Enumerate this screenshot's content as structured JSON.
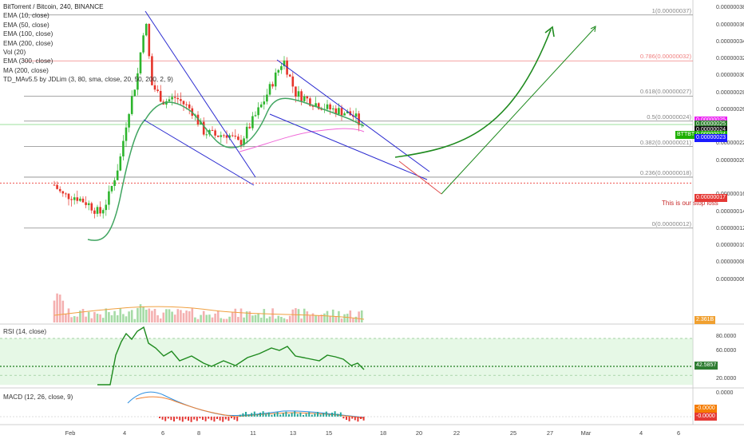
{
  "chart_data": {
    "type": "candlestick",
    "symbol": "BitTorrent / Bitcoin, 240, BINANCE",
    "indicators": [
      "EMA (10, close)",
      "EMA (50, close)",
      "EMA (100, close)",
      "EMA (200, close)",
      "Vol (20)",
      "EMA (300, close)",
      "MA (200, close)",
      "TD_MAv5.5 by JDLim (3, 80, sma, close, 20, 50, 200, 2, 9)"
    ],
    "price_axis_labels": [
      "0.00000038",
      "0.00000036",
      "0.00000034",
      "0.00000032",
      "0.00000030",
      "0.00000028",
      "0.00000026",
      "0.00000022",
      "0.00000020",
      "0.00000016",
      "0.00000014",
      "0.00000012",
      "0.00000010",
      "0.00000008",
      "0.00000006"
    ],
    "fib_levels": [
      {
        "label": "1(0.00000037)",
        "price": 3.72e-07,
        "color": "#888888"
      },
      {
        "label": "0.786(0.00000032)",
        "price": 3.18e-07,
        "color": "#f08080"
      },
      {
        "label": "0.618(0.00000027)",
        "price": 2.765e-07,
        "color": "#888888"
      },
      {
        "label": "0.5(0.00000024)",
        "price": 2.47e-07,
        "color": "#888888"
      },
      {
        "label": "0.382(0.00000021)",
        "price": 2.17e-07,
        "color": "#888888"
      },
      {
        "label": "0.236(0.00000018)",
        "price": 1.81e-07,
        "color": "#888888"
      },
      {
        "label": "0(0.00000012)",
        "price": 1.21e-07,
        "color": "#888888"
      }
    ],
    "stop_loss": {
      "price": 1.74e-07,
      "label": "This is our stop loss",
      "tag": "0.00000017",
      "color": "#e53935"
    },
    "price_tags": [
      {
        "text": "0.00000025",
        "price": 2.48e-07,
        "color": "#e91ef0"
      },
      {
        "text": "0.00000025",
        "price": 2.43e-07,
        "color": "#2a7d2a"
      },
      {
        "text": "0.00000024",
        "price": 2.36e-07,
        "color": "#111111"
      },
      {
        "text": "BTTBTC",
        "price": 2.31e-07,
        "color": "#1db000"
      },
      {
        "text": "0.00000024",
        "price": 2.31e-07,
        "color": "#1db000"
      },
      {
        "text": "0.00000023",
        "price": 2.27e-07,
        "color": "#1a1aff"
      }
    ],
    "volume_tag": "2.361B",
    "rsi": {
      "title": "RSI (14, close)",
      "levels": [
        "80.0000",
        "60.0000",
        "42.5857",
        "20.0000"
      ],
      "value": "42.5857"
    },
    "macd": {
      "title": "MACD (12, 26, close, 9)",
      "levels": [
        "0.0000",
        "-0.0000",
        "-0.0000",
        "-0.0000"
      ]
    },
    "x_labels": [
      "Feb",
      "4",
      "6",
      "8",
      "11",
      "13",
      "15",
      "18",
      "20",
      "22",
      "25",
      "27",
      "Mar",
      "4",
      "6"
    ],
    "colors": {
      "up": "#26a69a",
      "down": "#ef5350",
      "candle_up": "#2db52d",
      "candle_down": "#e6342a",
      "ema_green": "#41a561",
      "ema_pink": "#f068d8",
      "arrow": "#1e8a1e",
      "wedge": "#2a2ad0",
      "rsi_band": "#c8f0c8"
    }
  }
}
